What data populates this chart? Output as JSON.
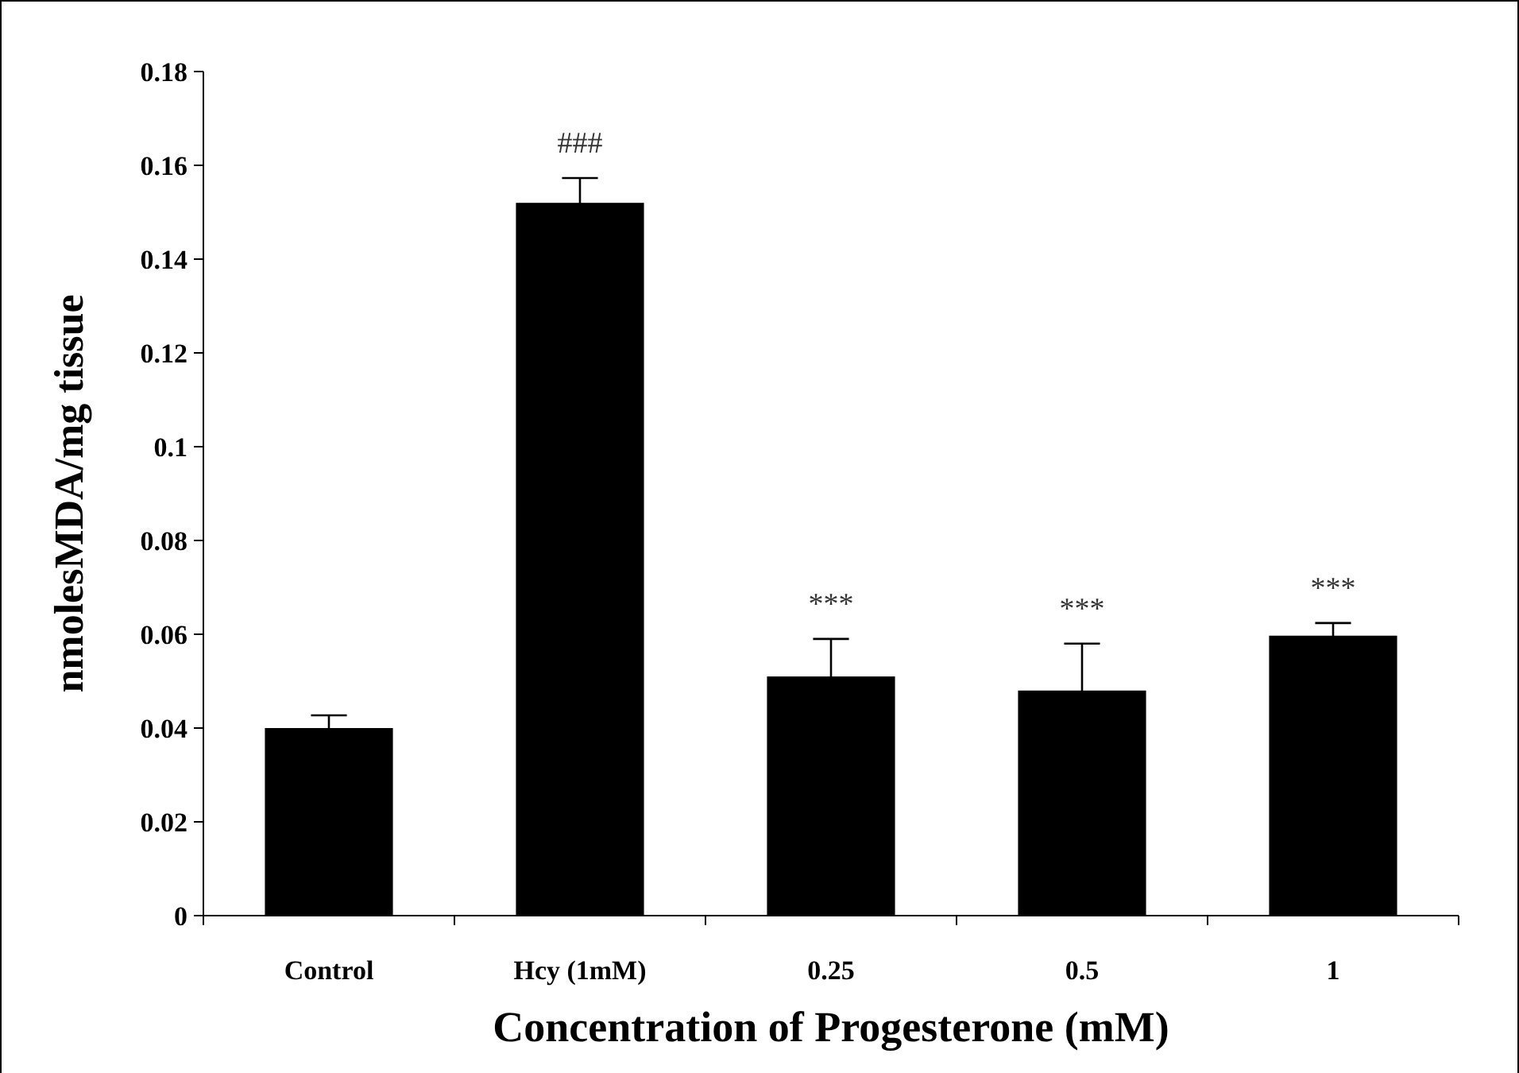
{
  "chart_data": {
    "type": "bar",
    "xlabel": "Concentration of Progesterone (mM)",
    "ylabel": "nmolesMDA/mg tissue",
    "categories": [
      "Control",
      "Hcy (1mM)",
      "0.25",
      "0.5",
      "1"
    ],
    "values": [
      0.04,
      0.152,
      0.051,
      0.048,
      0.0597
    ],
    "errors": [
      0.0027,
      0.0053,
      0.008,
      0.01,
      0.0027
    ],
    "color": "#000000",
    "ylim": [
      0,
      0.18
    ],
    "yticks": [
      0,
      0.02,
      0.04,
      0.06,
      0.08,
      0.1,
      0.12,
      0.14,
      0.16,
      0.18
    ],
    "grid": false,
    "annotations": [
      {
        "text": "###",
        "x": "Hcy (1mM)",
        "y": 0.1573
      },
      {
        "text": "***",
        "x": "0.25",
        "y": 0.059
      },
      {
        "text": "***",
        "x": "0.5",
        "y": 0.058
      },
      {
        "text": "***",
        "x": "1",
        "y": 0.0624
      }
    ]
  }
}
